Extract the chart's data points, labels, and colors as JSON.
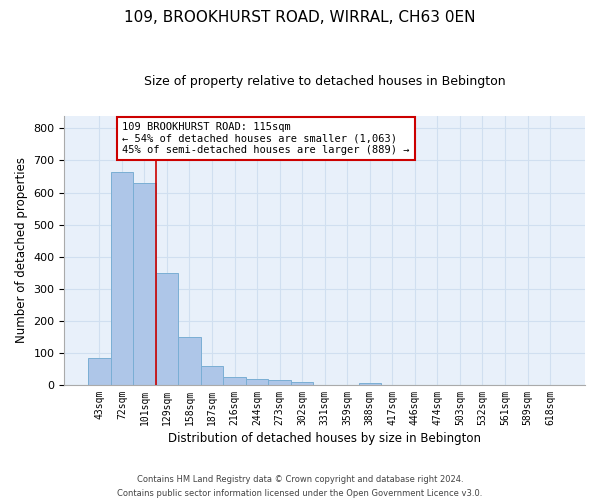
{
  "title": "109, BROOKHURST ROAD, WIRRAL, CH63 0EN",
  "subtitle": "Size of property relative to detached houses in Bebington",
  "xlabel": "Distribution of detached houses by size in Bebington",
  "ylabel": "Number of detached properties",
  "categories": [
    "43sqm",
    "72sqm",
    "101sqm",
    "129sqm",
    "158sqm",
    "187sqm",
    "216sqm",
    "244sqm",
    "273sqm",
    "302sqm",
    "331sqm",
    "359sqm",
    "388sqm",
    "417sqm",
    "446sqm",
    "474sqm",
    "503sqm",
    "532sqm",
    "561sqm",
    "589sqm",
    "618sqm"
  ],
  "values": [
    83,
    663,
    630,
    350,
    148,
    60,
    25,
    18,
    14,
    8,
    0,
    0,
    7,
    0,
    0,
    0,
    0,
    0,
    0,
    0,
    0
  ],
  "bar_color": "#aec6e8",
  "bar_edge_color": "#7aaed4",
  "grid_color": "#d0dff0",
  "bg_color": "#e8f0fa",
  "red_line_x": 2.5,
  "annotation_text": "109 BROOKHURST ROAD: 115sqm\n← 54% of detached houses are smaller (1,063)\n45% of semi-detached houses are larger (889) →",
  "ylim": [
    0,
    840
  ],
  "yticks": [
    0,
    100,
    200,
    300,
    400,
    500,
    600,
    700,
    800
  ],
  "footer1": "Contains HM Land Registry data © Crown copyright and database right 2024.",
  "footer2": "Contains public sector information licensed under the Open Government Licence v3.0."
}
